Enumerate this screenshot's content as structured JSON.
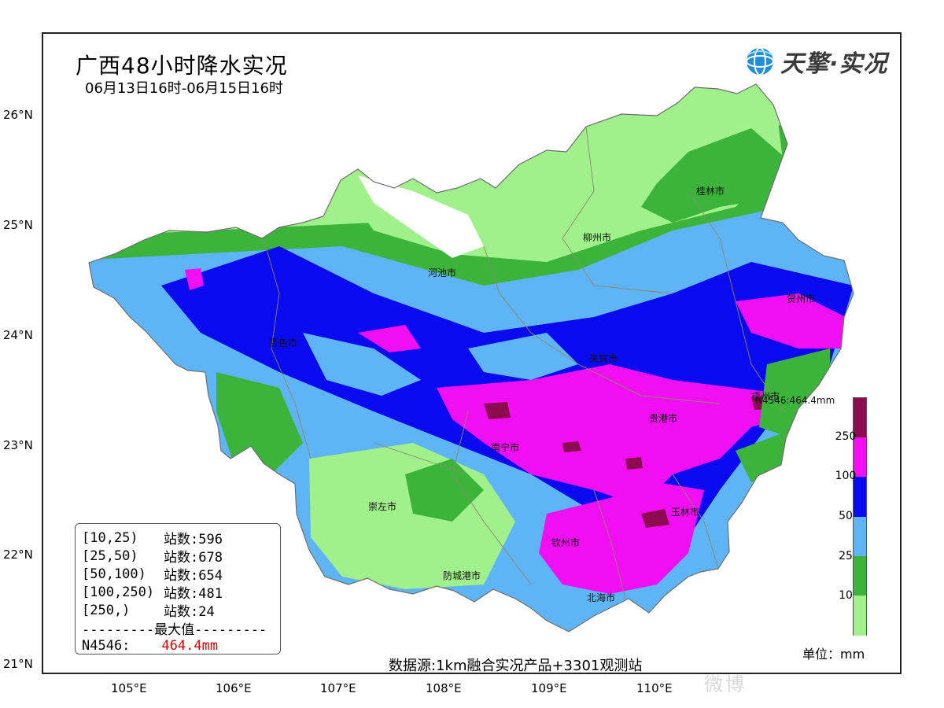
{
  "title": "广西48小时降水实况",
  "subtitle": "06月13日16时-06月15日16时",
  "logo": {
    "text": "天擎·实况",
    "icon": "globe-icon"
  },
  "axes": {
    "lat_labels": [
      "26°N",
      "25°N",
      "24°N",
      "23°N",
      "22°N",
      "21°N"
    ],
    "lon_labels": [
      "105°E",
      "106°E",
      "107°E",
      "108°E",
      "109°E",
      "110°E"
    ]
  },
  "cities": [
    {
      "name": "桂林市"
    },
    {
      "name": "柳州市"
    },
    {
      "name": "河池市"
    },
    {
      "name": "贺州市"
    },
    {
      "name": "百色市"
    },
    {
      "name": "来宾市"
    },
    {
      "name": "梧州市"
    },
    {
      "name": "贵港市"
    },
    {
      "name": "南宁市"
    },
    {
      "name": "崇左市"
    },
    {
      "name": "玉林市"
    },
    {
      "name": "钦州市"
    },
    {
      "name": "防城港市"
    },
    {
      "name": "北海市"
    }
  ],
  "max_annotation": "N4546:464.4mm",
  "stats": {
    "rows": [
      {
        "range": "[10,25)",
        "count": "站数:596"
      },
      {
        "range": "[25,50)",
        "count": "站数:678"
      },
      {
        "range": "[50,100)",
        "count": "站数:654"
      },
      {
        "range": "[100,250)",
        "count": "站数:481"
      },
      {
        "range": "[250,)",
        "count": "站数:24"
      }
    ],
    "divider": "---------最大值---------",
    "max_station": "N4546:",
    "max_value": "464.4mm"
  },
  "source": "数据源:1km融合实况产品+3301观测站",
  "legend": {
    "unit": "单位：mm",
    "labels": [
      "250",
      "100",
      "50",
      "25",
      "10"
    ],
    "colors": [
      "#8b0a50",
      "#f20ef2",
      "#0a0af0",
      "#5fb4f5",
      "#3cb43c",
      "#a0f08c"
    ]
  },
  "watermark": "微博"
}
